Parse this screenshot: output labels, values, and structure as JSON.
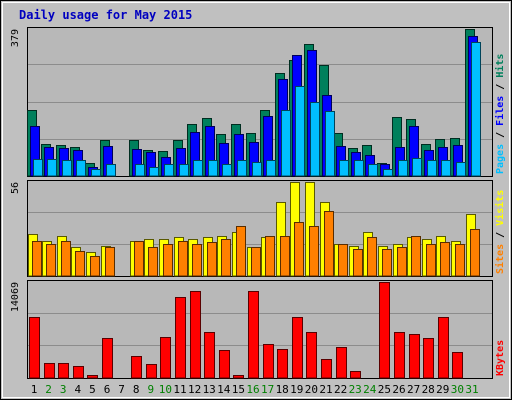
{
  "chart_data": {
    "type": "bar",
    "title": "Daily usage for May 2015",
    "days": [
      "1",
      "2",
      "3",
      "4",
      "5",
      "6",
      "7",
      "8",
      "9",
      "10",
      "11",
      "12",
      "13",
      "14",
      "15",
      "16",
      "17",
      "18",
      "19",
      "20",
      "21",
      "22",
      "23",
      "24",
      "25",
      "26",
      "27",
      "28",
      "29",
      "30",
      "31"
    ],
    "weekend_days": [
      "2",
      "3",
      "9",
      "10",
      "16",
      "17",
      "23",
      "24",
      "30",
      "31"
    ],
    "panels": [
      {
        "label": "Pages / Files / Hits",
        "ymax_label": "379",
        "ymax": 379,
        "series": [
          {
            "name": "Hits",
            "color": "#00805c",
            "values": [
              171,
              82,
              80,
              74,
              34,
              93,
              0,
              92,
              68,
              65,
              93,
              134,
              150,
              109,
              134,
              112,
              169,
              266,
              298,
              341,
              286,
              111,
              73,
              80,
              34,
              153,
              148,
              82,
              95,
              99,
              379
            ]
          },
          {
            "name": "Files",
            "color": "#0000ff",
            "values": [
              130,
              75,
              73,
              67,
              24,
              77,
              0,
              69,
              61,
              50,
              73,
              113,
              129,
              85,
              107,
              88,
              154,
              249,
              312,
              325,
              210,
              77,
              61,
              55,
              30,
              75,
              128,
              68,
              76,
              80,
              361
            ]
          },
          {
            "name": "Pages",
            "color": "#00bfff",
            "values": [
              43,
              43,
              41,
              41,
              17,
              32,
              0,
              32,
              22,
              32,
              32,
              42,
              40,
              32,
              42,
              36,
              40,
              169,
              231,
              190,
              168,
              41,
              40,
              32,
              17,
              42,
              46,
              42,
              41,
              36,
              345
            ]
          }
        ]
      },
      {
        "label": "Sites / Visits",
        "ymax_label": "56",
        "ymax": 56,
        "series": [
          {
            "name": "Visits",
            "color": "#ffff00",
            "values": [
              25,
              21,
              24,
              17,
              14,
              18,
              0,
              21,
              22,
              22,
              23,
              22,
              23,
              24,
              26,
              17,
              23,
              44,
              56,
              56,
              44,
              19,
              18,
              26,
              18,
              19,
              23,
              22,
              24,
              21,
              37
            ]
          },
          {
            "name": "Sites",
            "color": "#ff8000",
            "values": [
              21,
              19,
              21,
              15,
              12,
              17,
              0,
              21,
              17,
              19,
              21,
              19,
              20,
              22,
              30,
              17,
              24,
              24,
              32,
              30,
              39,
              19,
              16,
              23,
              16,
              17,
              24,
              19,
              20,
              19,
              28
            ]
          }
        ]
      },
      {
        "label": "KBytes",
        "ymax_label": "14069",
        "ymax": 14069,
        "series": [
          {
            "name": "KBytes",
            "color": "#ff0000",
            "values": [
              9000,
              2200,
              2200,
              1800,
              500,
              5800,
              0,
              3200,
              2100,
              6000,
              11900,
              12800,
              6800,
              4100,
              500,
              12800,
              5000,
              4200,
              9000,
              6800,
              2800,
              4600,
              1000,
              0,
              14069,
              6800,
              6400,
              5900,
              9000,
              3800,
              0
            ]
          }
        ]
      }
    ]
  }
}
